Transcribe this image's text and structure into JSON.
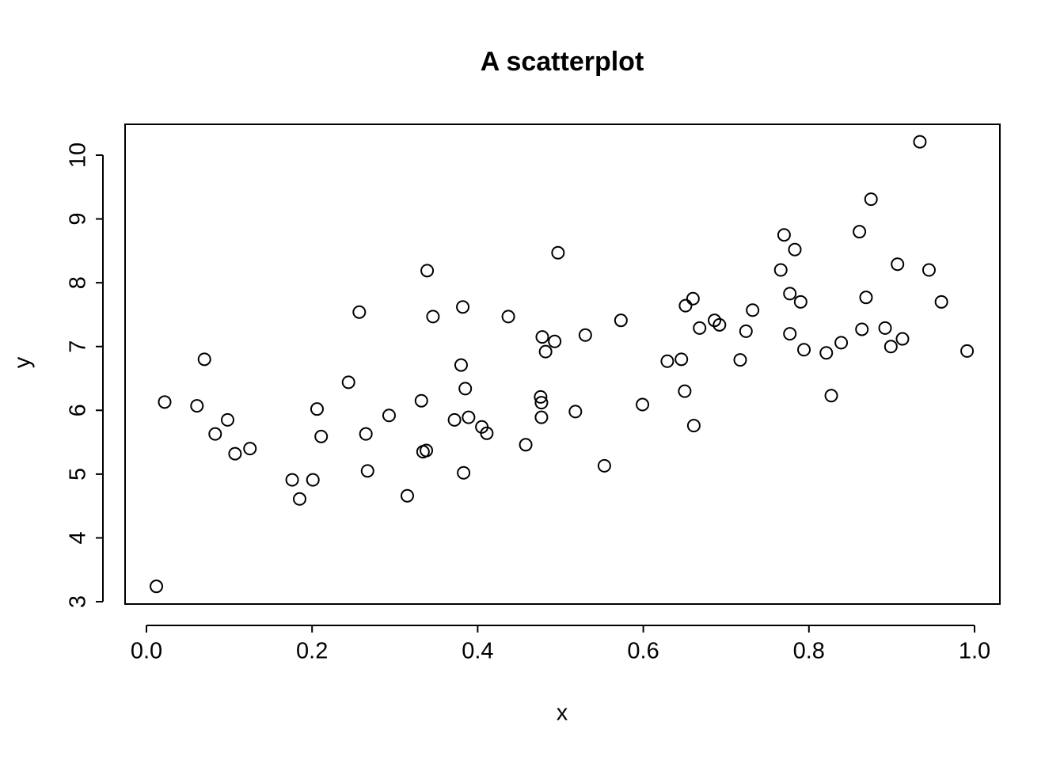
{
  "chart_data": {
    "type": "scatter",
    "title": "A scatterplot",
    "x_label": "x",
    "y_label": "y",
    "x": [
      0.012,
      0.022,
      0.061,
      0.07,
      0.083,
      0.098,
      0.107,
      0.125,
      0.176,
      0.185,
      0.201,
      0.206,
      0.211,
      0.244,
      0.257,
      0.265,
      0.267,
      0.293,
      0.315,
      0.332,
      0.334,
      0.338,
      0.339,
      0.346,
      0.372,
      0.38,
      0.382,
      0.383,
      0.385,
      0.389,
      0.405,
      0.411,
      0.437,
      0.458,
      0.476,
      0.477,
      0.477,
      0.478,
      0.482,
      0.493,
      0.497,
      0.518,
      0.53,
      0.553,
      0.573,
      0.599,
      0.629,
      0.646,
      0.65,
      0.651,
      0.66,
      0.661,
      0.668,
      0.686,
      0.692,
      0.717,
      0.724,
      0.732,
      0.766,
      0.77,
      0.777,
      0.777,
      0.783,
      0.79,
      0.794,
      0.821,
      0.827,
      0.839,
      0.861,
      0.864,
      0.869,
      0.875,
      0.892,
      0.899,
      0.907,
      0.913,
      0.934,
      0.945,
      0.96,
      0.991
    ],
    "values": [
      3.24,
      6.13,
      6.07,
      6.8,
      5.63,
      5.85,
      5.32,
      5.4,
      4.91,
      4.61,
      4.91,
      6.02,
      5.59,
      6.44,
      7.54,
      5.63,
      5.05,
      5.92,
      4.66,
      6.15,
      5.35,
      5.37,
      8.19,
      7.47,
      5.85,
      6.71,
      7.62,
      5.02,
      6.34,
      5.89,
      5.74,
      5.64,
      7.47,
      5.46,
      6.21,
      6.12,
      5.89,
      7.15,
      6.92,
      7.08,
      8.47,
      5.98,
      7.18,
      5.13,
      7.41,
      6.09,
      6.77,
      6.8,
      6.3,
      7.64,
      7.75,
      5.76,
      7.29,
      7.41,
      7.34,
      6.79,
      7.24,
      7.57,
      8.2,
      8.75,
      7.83,
      7.2,
      8.52,
      7.7,
      6.95,
      6.9,
      6.23,
      7.06,
      8.8,
      7.27,
      7.77,
      9.31,
      7.29,
      7.0,
      8.29,
      7.12,
      10.21,
      8.2,
      7.7,
      6.93
    ],
    "color": "#000000",
    "xlim": [
      -0.0258,
      1.0306
    ],
    "ylim": [
      2.963,
      10.484
    ],
    "xticks": [
      {
        "value": 0,
        "label": "0.0"
      },
      0.2,
      0.4,
      0.6,
      0.8,
      {
        "value": 1,
        "label": "1.0"
      }
    ],
    "yticks": [
      3,
      4,
      5,
      6,
      7,
      8,
      9,
      10
    ]
  }
}
